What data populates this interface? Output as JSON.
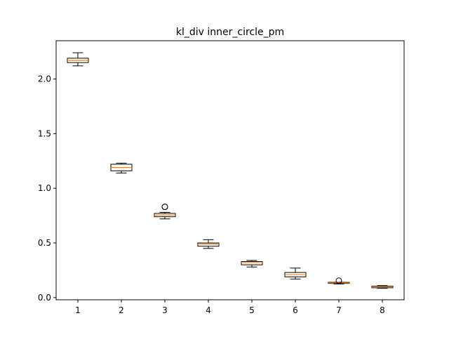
{
  "chart_data": {
    "type": "box",
    "title": "kl_div inner_circle_pm",
    "xlabel": "",
    "ylabel": "",
    "categories": [
      "1",
      "2",
      "3",
      "4",
      "5",
      "6",
      "7",
      "8"
    ],
    "y_ticks": [
      "0.0",
      "0.5",
      "1.0",
      "1.5",
      "2.0"
    ],
    "ylim": [
      -0.02,
      2.35
    ],
    "grid": false,
    "legend": "none",
    "colors": {
      "median": "#ff7f0e",
      "box": "#000000",
      "outlier": "#000000",
      "axes": "#000000"
    },
    "boxes": [
      {
        "label": "1",
        "whisker_low": 2.12,
        "q1": 2.15,
        "median": 2.17,
        "q3": 2.19,
        "whisker_high": 2.24,
        "outliers": []
      },
      {
        "label": "2",
        "whisker_low": 1.14,
        "q1": 1.16,
        "median": 1.19,
        "q3": 1.22,
        "whisker_high": 1.23,
        "outliers": []
      },
      {
        "label": "3",
        "whisker_low": 0.72,
        "q1": 0.74,
        "median": 0.755,
        "q3": 0.77,
        "whisker_high": 0.78,
        "outliers": [
          0.83,
          0.83
        ]
      },
      {
        "label": "4",
        "whisker_low": 0.45,
        "q1": 0.47,
        "median": 0.49,
        "q3": 0.5,
        "whisker_high": 0.53,
        "outliers": []
      },
      {
        "label": "5",
        "whisker_low": 0.28,
        "q1": 0.3,
        "median": 0.32,
        "q3": 0.33,
        "whisker_high": 0.34,
        "outliers": []
      },
      {
        "label": "6",
        "whisker_low": 0.17,
        "q1": 0.19,
        "median": 0.21,
        "q3": 0.23,
        "whisker_high": 0.27,
        "outliers": []
      },
      {
        "label": "7",
        "whisker_low": 0.125,
        "q1": 0.13,
        "median": 0.135,
        "q3": 0.14,
        "whisker_high": 0.14,
        "outliers": [
          0.155
        ]
      },
      {
        "label": "8",
        "whisker_low": 0.085,
        "q1": 0.09,
        "median": 0.1,
        "q3": 0.105,
        "whisker_high": 0.11,
        "outliers": []
      }
    ]
  }
}
